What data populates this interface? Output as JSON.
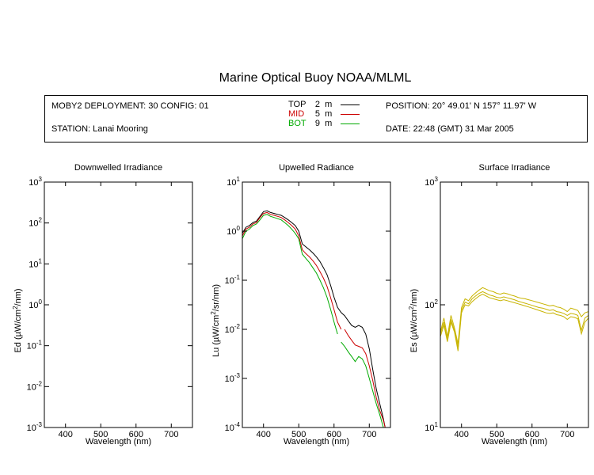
{
  "header": {
    "title": "Marine Optical Buoy NOAA/MLML",
    "deployment": "MOBY2 DEPLOYMENT: 30 CONFIG: 01",
    "station": "STATION: Lanai Mooring",
    "position": "POSITION: 20° 49.01' N   157° 11.97' W",
    "date": "DATE: 22:48 (GMT) 31 Mar 2005",
    "depths": [
      {
        "name": "TOP",
        "value": "2",
        "unit": "m",
        "color": "#000000"
      },
      {
        "name": "MID",
        "value": "5",
        "unit": "m",
        "color": "#cc0000"
      },
      {
        "name": "BOT",
        "value": "9",
        "unit": "m",
        "color": "#00aa00"
      }
    ]
  },
  "chart_data": [
    {
      "type": "line",
      "title": "Downwelled Irradiance",
      "xlabel": "Wavelength (nm)",
      "ylabel": "Ed  (µW/cm²/nm)",
      "ylabel_main": "Ed  (µW/cm",
      "ylabel_tail": "/nm)",
      "xlim": [
        340,
        760
      ],
      "ylim": [
        0.001,
        1000
      ],
      "yscale": "log",
      "xticks": [
        400,
        500,
        600,
        700
      ],
      "yticks": [
        -3,
        -2,
        -1,
        0,
        1,
        2,
        3
      ],
      "series": []
    },
    {
      "type": "line",
      "title": "Upwelled Radiance",
      "xlabel": "Wavelength (nm)",
      "ylabel": "Lu  (µW/cm²/sr/nm)",
      "ylabel_main": "Lu  (µW/cm",
      "ylabel_tail": "/sr/nm)",
      "xlim": [
        340,
        760
      ],
      "ylim": [
        0.0001,
        10
      ],
      "yscale": "log",
      "xticks": [
        400,
        500,
        600,
        700
      ],
      "yticks": [
        -4,
        -3,
        -2,
        -1,
        0,
        1
      ],
      "series": [
        {
          "name": "TOP",
          "color": "#000000",
          "x": [
            340,
            350,
            360,
            370,
            380,
            390,
            400,
            410,
            420,
            430,
            440,
            450,
            460,
            470,
            480,
            490,
            500,
            510,
            520,
            530,
            540,
            550,
            560,
            570,
            580,
            590,
            600,
            610,
            620,
            630,
            640,
            650,
            660,
            670,
            680,
            690,
            700,
            710,
            720,
            730,
            740,
            745
          ],
          "y": [
            0.9,
            1.2,
            1.3,
            1.5,
            1.6,
            2.0,
            2.5,
            2.6,
            2.4,
            2.3,
            2.2,
            2.1,
            1.9,
            1.7,
            1.5,
            1.3,
            1.0,
            0.55,
            0.48,
            0.42,
            0.36,
            0.3,
            0.24,
            0.18,
            0.13,
            0.08,
            0.045,
            0.028,
            0.022,
            0.019,
            0.015,
            0.012,
            0.011,
            0.012,
            0.011,
            0.008,
            0.004,
            0.0015,
            0.0006,
            0.0003,
            0.00015,
            0.0001
          ]
        },
        {
          "name": "MID",
          "color": "#cc0000",
          "x": [
            340,
            350,
            360,
            370,
            380,
            390,
            400,
            410,
            420,
            430,
            440,
            450,
            460,
            470,
            480,
            490,
            500,
            510,
            520,
            530,
            540,
            550,
            560,
            570,
            580,
            590,
            600,
            610,
            620
          ],
          "y": [
            0.8,
            1.1,
            1.2,
            1.4,
            1.5,
            1.9,
            2.3,
            2.4,
            2.2,
            2.1,
            2.0,
            1.9,
            1.7,
            1.5,
            1.3,
            1.1,
            0.8,
            0.42,
            0.35,
            0.3,
            0.25,
            0.2,
            0.15,
            0.11,
            0.075,
            0.045,
            0.025,
            0.014,
            0.01
          ]
        },
        {
          "name": "BOT",
          "color": "#00aa00",
          "x": [
            340,
            350,
            360,
            370,
            380,
            390,
            400,
            410,
            420,
            430,
            440,
            450,
            460,
            470,
            480,
            490,
            500,
            510,
            520,
            530,
            540,
            550,
            560,
            570,
            580,
            590,
            600,
            610
          ],
          "y": [
            0.7,
            1.0,
            1.1,
            1.3,
            1.4,
            1.7,
            2.1,
            2.2,
            2.0,
            1.9,
            1.8,
            1.7,
            1.5,
            1.3,
            1.1,
            0.9,
            0.7,
            0.34,
            0.28,
            0.23,
            0.18,
            0.14,
            0.1,
            0.07,
            0.045,
            0.026,
            0.014,
            0.008
          ]
        },
        {
          "name": "MID",
          "color": "#cc0000",
          "x": [
            630,
            640,
            650,
            660,
            670,
            680,
            690,
            700,
            710,
            720,
            730,
            740,
            745
          ],
          "y": [
            0.01,
            0.0075,
            0.006,
            0.0048,
            0.0045,
            0.0042,
            0.0032,
            0.0018,
            0.0009,
            0.0004,
            0.00022,
            0.00014,
            0.0001
          ]
        },
        {
          "name": "BOT",
          "color": "#00aa00",
          "x": [
            620,
            630,
            640,
            650,
            660,
            670,
            680,
            690,
            700,
            710,
            720,
            730,
            740
          ],
          "y": [
            0.0055,
            0.0045,
            0.0035,
            0.0028,
            0.0022,
            0.0028,
            0.0025,
            0.0018,
            0.001,
            0.00055,
            0.0003,
            0.00018,
            0.0001
          ]
        }
      ]
    },
    {
      "type": "line",
      "title": "Surface Irradiance",
      "xlabel": "Wavelength (nm)",
      "ylabel": "Es  (µW/cm²/nm)",
      "ylabel_main": "Es  (µW/cm",
      "ylabel_tail": "/nm)",
      "xlim": [
        340,
        760
      ],
      "ylim": [
        10,
        1000
      ],
      "yscale": "log",
      "xticks": [
        400,
        500,
        600,
        700
      ],
      "yticks": [
        1,
        2,
        3
      ],
      "series": [
        {
          "name": "",
          "color": "#c8b400",
          "x": [
            340,
            350,
            360,
            370,
            380,
            390,
            400,
            410,
            420,
            430,
            440,
            450,
            460,
            470,
            480,
            490,
            500,
            510,
            520,
            530,
            540,
            550,
            560,
            570,
            580,
            590,
            600,
            610,
            620,
            630,
            640,
            650,
            660,
            670,
            680,
            690,
            700,
            710,
            720,
            730,
            740,
            750,
            760
          ],
          "y": [
            60,
            78,
            55,
            82,
            65,
            48,
            95,
            112,
            108,
            118,
            125,
            132,
            138,
            134,
            130,
            128,
            124,
            122,
            125,
            123,
            120,
            118,
            115,
            113,
            112,
            110,
            108,
            106,
            104,
            102,
            100,
            98,
            99,
            96,
            95,
            92,
            88,
            94,
            92,
            90,
            80,
            86,
            88
          ]
        },
        {
          "name": "",
          "color": "#c8b400",
          "x": [
            340,
            350,
            360,
            370,
            380,
            390,
            400,
            410,
            420,
            430,
            440,
            450,
            460,
            470,
            480,
            490,
            500,
            510,
            520,
            530,
            540,
            550,
            560,
            570,
            580,
            590,
            600,
            610,
            620,
            630,
            640,
            650,
            660,
            670,
            680,
            690,
            700,
            710,
            720,
            730,
            740,
            750,
            760
          ],
          "y": [
            58,
            72,
            52,
            76,
            62,
            45,
            90,
            105,
            102,
            112,
            118,
            124,
            128,
            124,
            120,
            118,
            115,
            114,
            116,
            114,
            112,
            110,
            107,
            105,
            103,
            101,
            99,
            97,
            95,
            94,
            92,
            90,
            91,
            88,
            87,
            85,
            82,
            85,
            84,
            82,
            62,
            78,
            82
          ]
        },
        {
          "name": "",
          "color": "#c8b400",
          "x": [
            340,
            350,
            360,
            370,
            380,
            390,
            400,
            410,
            420,
            430,
            440,
            450,
            460,
            470,
            480,
            490,
            500,
            510,
            520,
            530,
            540,
            550,
            560,
            570,
            580,
            590,
            600,
            610,
            620,
            630,
            640,
            650,
            660,
            670,
            680,
            690,
            700,
            710,
            720,
            730,
            740,
            750,
            760
          ],
          "y": [
            55,
            68,
            50,
            72,
            60,
            42,
            86,
            100,
            98,
            106,
            112,
            118,
            122,
            118,
            114,
            112,
            110,
            108,
            110,
            108,
            106,
            104,
            102,
            100,
            98,
            96,
            94,
            92,
            90,
            88,
            86,
            85,
            86,
            83,
            82,
            80,
            76,
            80,
            79,
            77,
            58,
            72,
            78
          ]
        }
      ]
    }
  ]
}
